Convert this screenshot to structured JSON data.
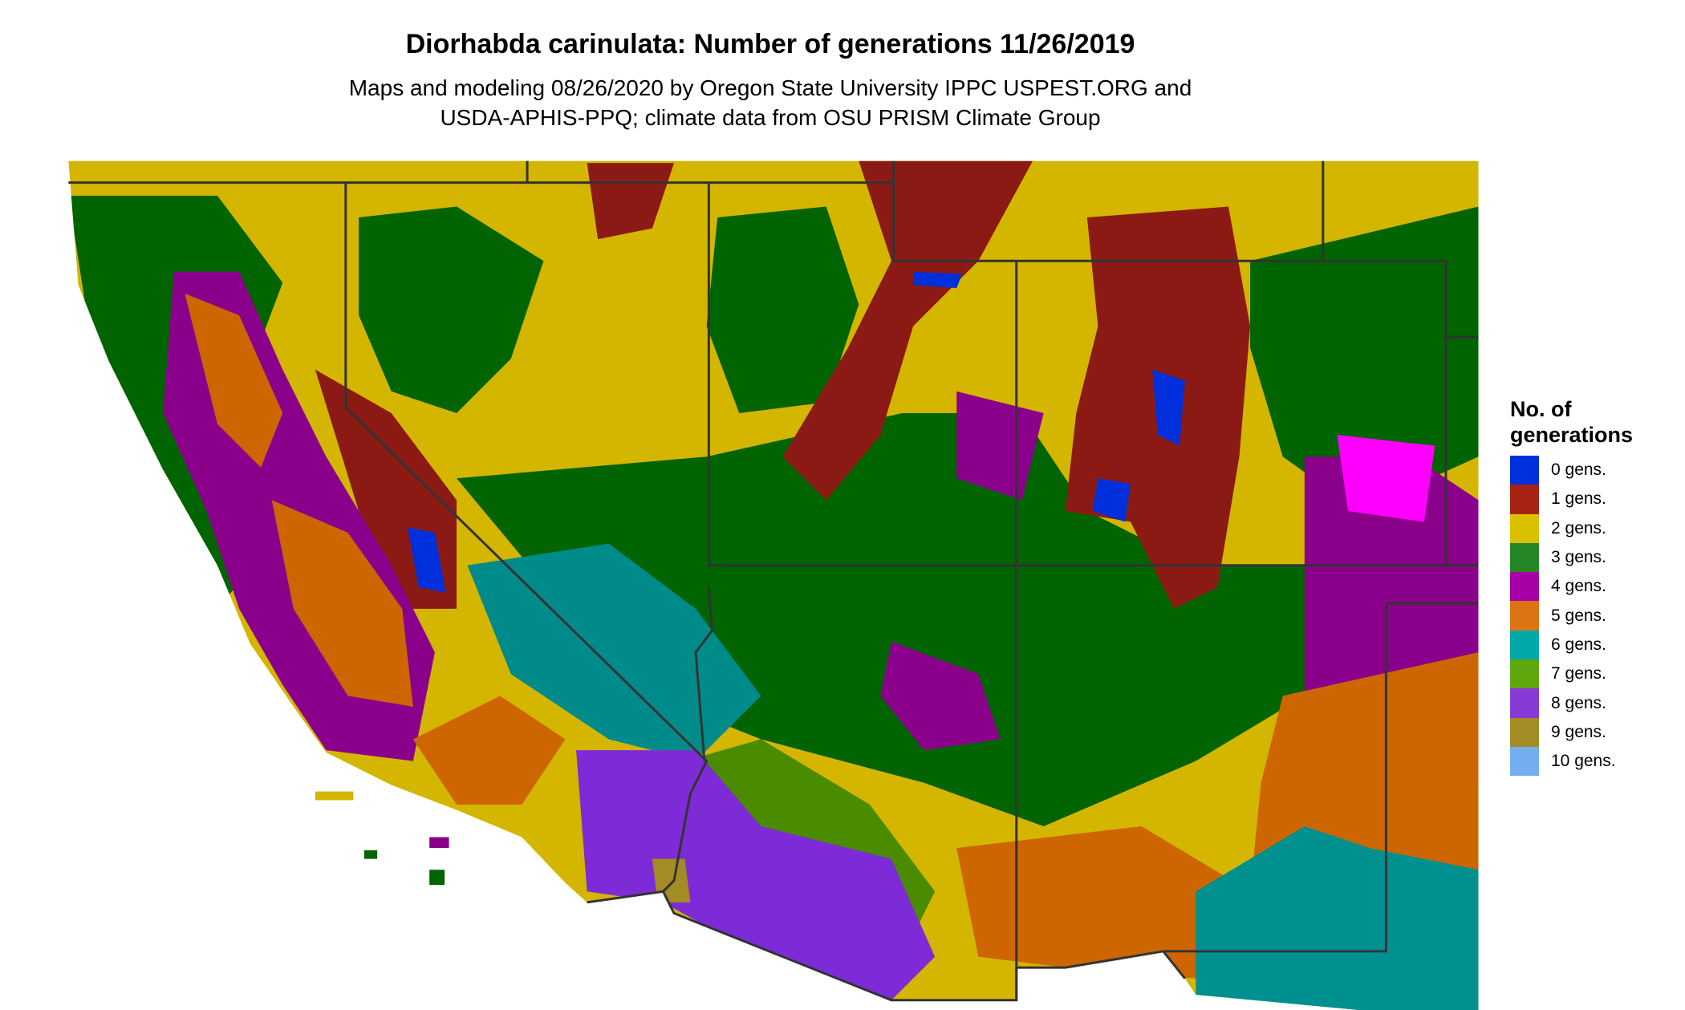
{
  "title": "Diorhabda carinulata: Number of generations 11/26/2019",
  "subtitle_lines": [
    "Maps and modeling 08/26/2020 by Oregon State University IPPC USPEST.ORG and",
    "USDA-APHIS-PPQ; climate data from OSU PRISM Climate Group"
  ],
  "legend": {
    "title_lines": [
      "No. of",
      "generations"
    ],
    "items": [
      {
        "label": "0 gens.",
        "color": "#0030DC"
      },
      {
        "label": "1 gens.",
        "color": "#A52214"
      },
      {
        "label": "2 gens.",
        "color": "#D9C100"
      },
      {
        "label": "3 gens.",
        "color": "#268626"
      },
      {
        "label": "4 gens.",
        "color": "#A600A6"
      },
      {
        "label": "5 gens.",
        "color": "#DC7414"
      },
      {
        "label": "6 gens.",
        "color": "#00A8A8"
      },
      {
        "label": "7 gens.",
        "color": "#5EA80E"
      },
      {
        "label": "8 gens.",
        "color": "#873BD6"
      },
      {
        "label": "9 gens.",
        "color": "#A38C24"
      },
      {
        "label": "10 gens.",
        "color": "#72AEF0"
      }
    ]
  }
}
